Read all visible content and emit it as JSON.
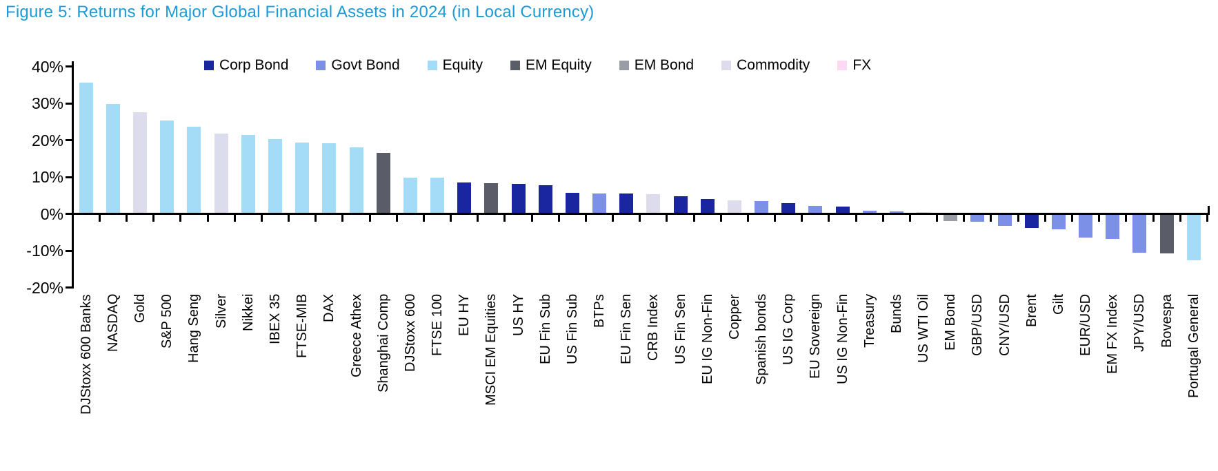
{
  "title": "Figure 5: Returns for Major Global Financial Assets in 2024 (in Local Currency)",
  "title_color": "#1b9ad7",
  "palette": {
    "corp_bond": "#1a26a0",
    "govt_bond": "#7b90e6",
    "equity": "#a4dcf7",
    "em_equity": "#5a5d68",
    "em_bond": "#9a9ca6",
    "commodity": "#dcdcec",
    "fx": "#fbd9f2"
  },
  "legend": {
    "items": [
      {
        "label": "Corp Bond",
        "color_key": "corp_bond"
      },
      {
        "label": "Govt Bond",
        "color_key": "govt_bond"
      },
      {
        "label": "Equity",
        "color_key": "equity"
      },
      {
        "label": "EM Equity",
        "color_key": "em_equity"
      },
      {
        "label": "EM Bond",
        "color_key": "em_bond"
      },
      {
        "label": "Commodity",
        "color_key": "commodity"
      },
      {
        "label": "FX",
        "color_key": "fx"
      }
    ]
  },
  "chart_data": {
    "type": "bar",
    "title": "Figure 5: Returns for Major Global Financial Assets in 2024 (in Local Currency)",
    "xlabel": "",
    "ylabel": "",
    "ylim": [
      -20,
      40
    ],
    "grid": false,
    "legend_position": "top",
    "yticks": [
      {
        "label": "40%",
        "value": 40
      },
      {
        "label": "30%",
        "value": 30
      },
      {
        "label": "20%",
        "value": 20
      },
      {
        "label": "10%",
        "value": 10
      },
      {
        "label": "0%",
        "value": 0
      },
      {
        "label": "-10%",
        "value": -10
      },
      {
        "label": "-20%",
        "value": -20
      }
    ],
    "bars": [
      {
        "label": "DJStoxx 600 Banks",
        "value": 35.3,
        "category": "Equity",
        "color_key": "equity"
      },
      {
        "label": "NASDAQ",
        "value": 29.5,
        "category": "Equity",
        "color_key": "equity"
      },
      {
        "label": "Gold",
        "value": 27.2,
        "category": "Commodity",
        "color_key": "commodity"
      },
      {
        "label": "S&P 500",
        "value": 25.0,
        "category": "Equity",
        "color_key": "equity"
      },
      {
        "label": "Hang Seng",
        "value": 23.3,
        "category": "Equity",
        "color_key": "equity"
      },
      {
        "label": "Silver",
        "value": 21.5,
        "category": "Commodity",
        "color_key": "commodity"
      },
      {
        "label": "Nikkei",
        "value": 21.2,
        "category": "Equity",
        "color_key": "equity"
      },
      {
        "label": "IBEX 35",
        "value": 20.0,
        "category": "Equity",
        "color_key": "equity"
      },
      {
        "label": "FTSE-MIB",
        "value": 19.1,
        "category": "Equity",
        "color_key": "equity"
      },
      {
        "label": "DAX",
        "value": 18.9,
        "category": "Equity",
        "color_key": "equity"
      },
      {
        "label": "Greece Athex",
        "value": 17.7,
        "category": "Equity",
        "color_key": "equity"
      },
      {
        "label": "Shanghai Comp",
        "value": 16.2,
        "category": "EM Equity",
        "color_key": "em_equity"
      },
      {
        "label": "DJStoxx 600",
        "value": 9.6,
        "category": "Equity",
        "color_key": "equity"
      },
      {
        "label": "FTSE 100",
        "value": 9.5,
        "category": "Equity",
        "color_key": "equity"
      },
      {
        "label": "EU HY",
        "value": 8.3,
        "category": "Corp Bond",
        "color_key": "corp_bond"
      },
      {
        "label": "MSCI EM Equities",
        "value": 8.0,
        "category": "EM Equity",
        "color_key": "em_equity"
      },
      {
        "label": "US HY",
        "value": 7.9,
        "category": "Corp Bond",
        "color_key": "corp_bond"
      },
      {
        "label": "EU Fin Sub",
        "value": 7.5,
        "category": "Corp Bond",
        "color_key": "corp_bond"
      },
      {
        "label": "US Fin Sub",
        "value": 5.4,
        "category": "Corp Bond",
        "color_key": "corp_bond"
      },
      {
        "label": "BTPs",
        "value": 5.3,
        "category": "Govt Bond",
        "color_key": "govt_bond"
      },
      {
        "label": "EU Fin Sen",
        "value": 5.2,
        "category": "Corp Bond",
        "color_key": "corp_bond"
      },
      {
        "label": "CRB Index",
        "value": 5.0,
        "category": "Commodity",
        "color_key": "commodity"
      },
      {
        "label": "US Fin Sen",
        "value": 4.4,
        "category": "Corp Bond",
        "color_key": "corp_bond"
      },
      {
        "label": "EU IG Non-Fin",
        "value": 3.8,
        "category": "Corp Bond",
        "color_key": "corp_bond"
      },
      {
        "label": "Copper",
        "value": 3.3,
        "category": "Commodity",
        "color_key": "commodity"
      },
      {
        "label": "Spanish bonds",
        "value": 3.1,
        "category": "Govt Bond",
        "color_key": "govt_bond"
      },
      {
        "label": "US IG Corp",
        "value": 2.7,
        "category": "Corp Bond",
        "color_key": "corp_bond"
      },
      {
        "label": "EU Sovereign",
        "value": 1.8,
        "category": "Govt Bond",
        "color_key": "govt_bond"
      },
      {
        "label": "US IG Non-Fin",
        "value": 1.6,
        "category": "Corp Bond",
        "color_key": "corp_bond"
      },
      {
        "label": "Treasury",
        "value": 0.5,
        "category": "Govt Bond",
        "color_key": "govt_bond"
      },
      {
        "label": "Bunds",
        "value": 0.3,
        "category": "Govt Bond",
        "color_key": "govt_bond"
      },
      {
        "label": "US WTI Oil",
        "value": 0.1,
        "category": "Commodity",
        "color_key": "commodity"
      },
      {
        "label": "EM Bond",
        "value": -1.7,
        "category": "EM Bond",
        "color_key": "em_bond"
      },
      {
        "label": "GBP/USD",
        "value": -1.9,
        "category": "FX",
        "color_key": "govt_bond"
      },
      {
        "label": "CNY/USD",
        "value": -2.9,
        "category": "FX",
        "color_key": "govt_bond"
      },
      {
        "label": "Brent",
        "value": -3.5,
        "category": "Commodity",
        "color_key": "corp_bond"
      },
      {
        "label": "Gilt",
        "value": -4.0,
        "category": "Govt Bond",
        "color_key": "govt_bond"
      },
      {
        "label": "EUR/USD",
        "value": -6.2,
        "category": "FX",
        "color_key": "govt_bond"
      },
      {
        "label": "EM FX Index",
        "value": -6.6,
        "category": "FX",
        "color_key": "govt_bond"
      },
      {
        "label": "JPY/USD",
        "value": -10.2,
        "category": "FX",
        "color_key": "govt_bond"
      },
      {
        "label": "Bovespa",
        "value": -10.4,
        "category": "EM Equity",
        "color_key": "em_equity"
      },
      {
        "label": "Portugal General",
        "value": -12.4,
        "category": "Equity",
        "color_key": "equity"
      }
    ]
  }
}
